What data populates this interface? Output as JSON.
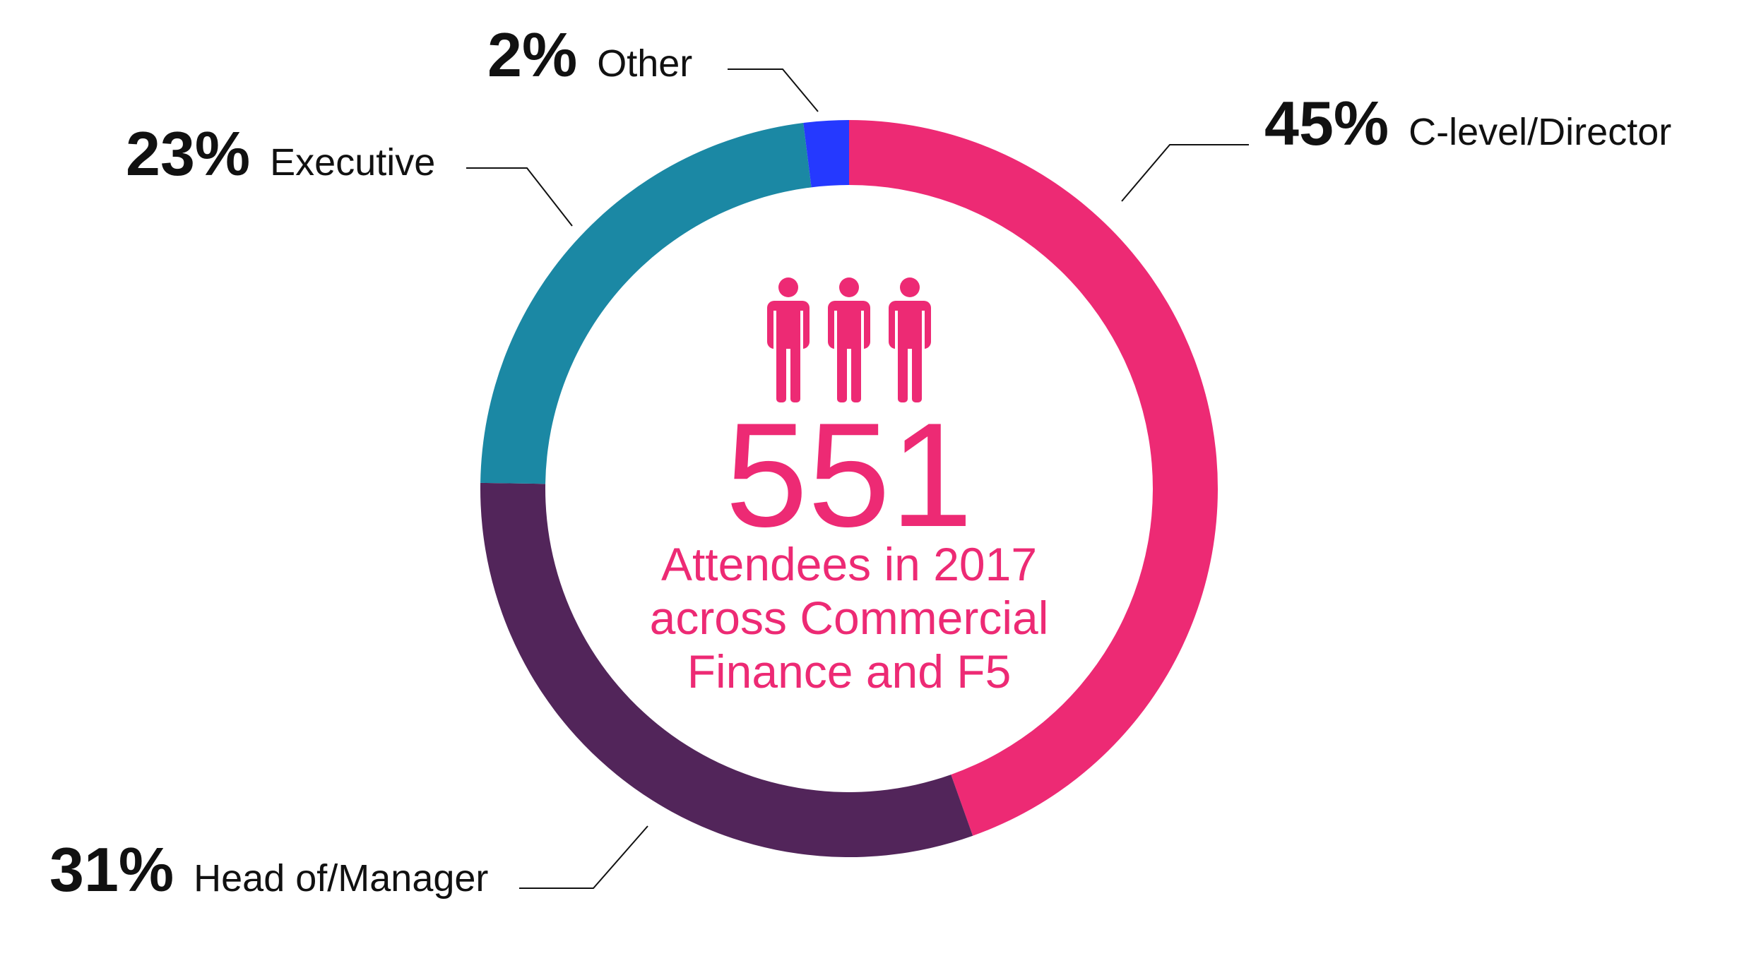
{
  "chart_data": {
    "type": "pie",
    "donut": true,
    "categories": [
      "C-level/Director",
      "Head of/Manager",
      "Executive",
      "Other"
    ],
    "values": [
      45,
      31,
      23,
      2
    ],
    "value_labels": [
      "45%",
      "31%",
      "23%",
      "2%"
    ],
    "colors": [
      "#ED2A74",
      "#52255A",
      "#1B88A4",
      "#2539FF"
    ],
    "center": {
      "number": "551",
      "lines": [
        "Attendees in 2017",
        "across Commercial",
        "Finance and F5"
      ]
    }
  },
  "center_icon": "three-people-icon",
  "accent_color": "#ED2A74"
}
